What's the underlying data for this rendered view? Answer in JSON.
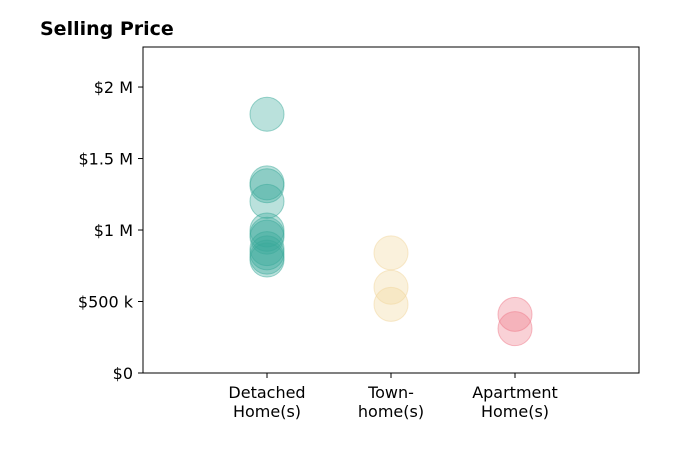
{
  "chart_data": {
    "type": "scatter",
    "title": "Selling Price",
    "xlabel": "",
    "ylabel": "",
    "categories": [
      [
        "Detached",
        "Home(s)"
      ],
      [
        "Town-",
        "home(s)"
      ],
      [
        "Apartment",
        "Home(s)"
      ]
    ],
    "xlim": [
      0,
      4
    ],
    "ylim": [
      0,
      2280000
    ],
    "yticks": [
      {
        "value": 0,
        "label": "$0"
      },
      {
        "value": 500000,
        "label": "$500 k"
      },
      {
        "value": 1000000,
        "label": "$1 M"
      },
      {
        "value": 1500000,
        "label": "$1.5 M"
      },
      {
        "value": 2000000,
        "label": "$2 M"
      }
    ],
    "grid": false,
    "colors": [
      "#3aa99a",
      "#f1d69c",
      "#ef7a8a"
    ],
    "series": [
      {
        "category_index": 0,
        "values": [
          1810000,
          1330000,
          1310000,
          1200000,
          1000000,
          970000,
          950000,
          870000,
          840000,
          810000,
          790000
        ]
      },
      {
        "category_index": 1,
        "values": [
          840000,
          600000,
          480000
        ]
      },
      {
        "category_index": 2,
        "values": [
          410000,
          310000
        ]
      }
    ]
  }
}
